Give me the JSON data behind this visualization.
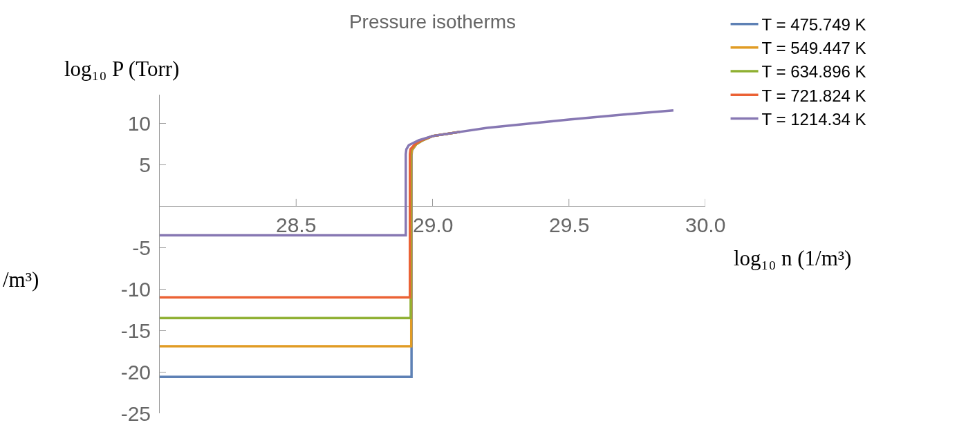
{
  "chart_data": {
    "type": "line",
    "title": "Pressure isotherms",
    "xlabel": "log₁₀ n (1/m³)",
    "ylabel": "log₁₀ P (Torr)",
    "annotations": [
      "/m³)"
    ],
    "xlim": [
      28.0,
      30.0
    ],
    "xticks": [
      28.5,
      {
        "value": 29.0,
        "label": "29.0"
      },
      29.5,
      {
        "value": 30.0,
        "label": "30.0"
      }
    ],
    "ylim": [
      -25,
      13.5
    ],
    "yticks": [
      -25,
      -20,
      -15,
      -10,
      -5,
      5,
      10
    ],
    "legend": "top right",
    "marker": "none",
    "line_style": "solid",
    "series": [
      {
        "name": "T = 475.749 K",
        "color": "#5e81b5",
        "x": [
          28.0,
          28.923,
          28.923,
          28.925,
          28.94,
          28.965,
          29.0,
          29.1
        ],
        "values": [
          -20.6,
          -20.6,
          6.2,
          6.8,
          7.5,
          8.0,
          8.5,
          9.0
        ]
      },
      {
        "name": "T = 549.447 K",
        "color": "#e19c24",
        "x": [
          28.0,
          28.922,
          28.922,
          28.924,
          28.94,
          28.965,
          29.0,
          29.1
        ],
        "values": [
          -16.9,
          -16.9,
          6.2,
          6.8,
          7.5,
          8.0,
          8.5,
          9.0
        ]
      },
      {
        "name": "T = 634.896 K",
        "color": "#8fb032",
        "x": [
          28.0,
          28.92,
          28.92,
          28.922,
          28.938,
          28.963,
          29.0,
          29.1
        ],
        "values": [
          -13.5,
          -13.5,
          6.3,
          6.9,
          7.5,
          8.0,
          8.5,
          9.0
        ]
      },
      {
        "name": "T = 721.824 K",
        "color": "#eb6235",
        "x": [
          28.0,
          28.917,
          28.917,
          28.919,
          28.935,
          28.96,
          29.0,
          29.1
        ],
        "values": [
          -11.0,
          -11.0,
          6.3,
          6.9,
          7.5,
          8.0,
          8.5,
          9.0
        ]
      },
      {
        "name": "T = 1214.34 K",
        "color": "#8778b3",
        "x": [
          28.0,
          28.902,
          28.902,
          28.904,
          28.913,
          28.95,
          29.0,
          29.1,
          29.2,
          29.35,
          29.5,
          29.7,
          29.883
        ],
        "values": [
          -3.5,
          -3.5,
          6.3,
          6.9,
          7.4,
          8.0,
          8.5,
          9.0,
          9.5,
          10.0,
          10.5,
          11.1,
          11.6
        ]
      }
    ]
  }
}
